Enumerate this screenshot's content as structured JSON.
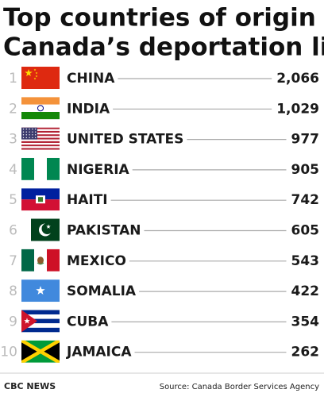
{
  "header": {
    "title_lines": [
      "Top countries of origin on",
      "Canada’s deportation list"
    ]
  },
  "list": {
    "rows": [
      {
        "rank": 1,
        "country": "CHINA",
        "count": "2,066"
      },
      {
        "rank": 2,
        "country": "INDIA",
        "count": "1,029"
      },
      {
        "rank": 3,
        "country": "UNITED STATES",
        "count": "977"
      },
      {
        "rank": 4,
        "country": "NIGERIA",
        "count": "905"
      },
      {
        "rank": 5,
        "country": "HAITI",
        "count": "742"
      },
      {
        "rank": 6,
        "country": "PAKISTAN",
        "count": "605"
      },
      {
        "rank": 7,
        "country": "MEXICO",
        "count": "543"
      },
      {
        "rank": 8,
        "country": "SOMALIA",
        "count": "422"
      },
      {
        "rank": 9,
        "country": "CUBA",
        "count": "354"
      },
      {
        "rank": 10,
        "country": "JAMAICA",
        "count": "262"
      }
    ]
  },
  "footer": {
    "brand": "CBC NEWS",
    "source": "Source: Canada Border Services Agency"
  }
}
